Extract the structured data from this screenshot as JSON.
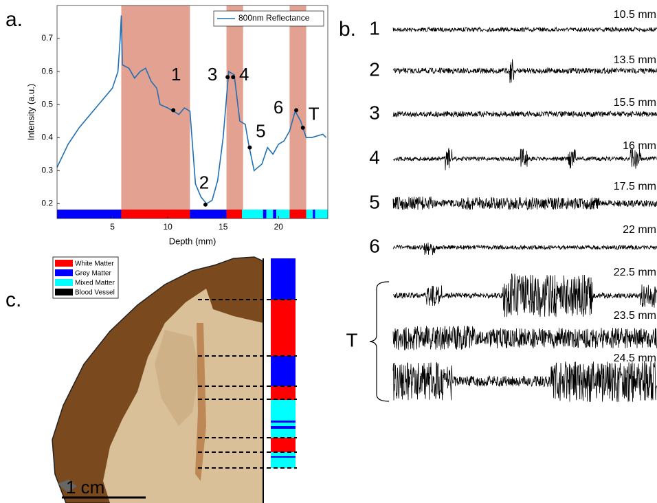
{
  "panel_labels": [
    "a.",
    "b.",
    "c."
  ],
  "chart_data": {
    "type": "line",
    "x_label": "Depth (mm)",
    "y_label": "Intensity (a.u.)",
    "x": [
      0,
      1,
      2,
      3,
      4,
      5,
      5.5,
      5.7,
      5.8,
      5.9,
      6.5,
      7,
      7.5,
      8,
      8.5,
      9,
      9.3,
      10,
      10.5,
      11,
      11.5,
      12,
      12.5,
      13,
      13.5,
      14,
      14.5,
      15,
      15.5,
      16,
      16.5,
      17,
      17.3,
      17.8,
      18.5,
      19,
      19.5,
      20,
      20.5,
      21,
      21.5,
      22,
      22.5,
      23,
      24,
      24.3
    ],
    "series": [
      {
        "name": "800nm Reflectance",
        "color": "#1f6fb4",
        "values": [
          0.31,
          0.38,
          0.43,
          0.47,
          0.51,
          0.55,
          0.6,
          0.7,
          0.77,
          0.62,
          0.61,
          0.58,
          0.6,
          0.61,
          0.57,
          0.55,
          0.5,
          0.49,
          0.48,
          0.47,
          0.49,
          0.48,
          0.26,
          0.22,
          0.2,
          0.21,
          0.27,
          0.4,
          0.6,
          0.59,
          0.45,
          0.44,
          0.38,
          0.3,
          0.32,
          0.37,
          0.35,
          0.38,
          0.39,
          0.42,
          0.48,
          0.45,
          0.4,
          0.4,
          0.41,
          0.4
        ]
      }
    ],
    "xlim": [
      0,
      24.45
    ],
    "ylim": [
      0.155,
      0.8
    ],
    "xticks": [
      5,
      10,
      15,
      20
    ],
    "yticks": [
      0.2,
      0.3,
      0.4,
      0.5,
      0.6,
      0.7
    ],
    "legend": "upper right",
    "shaded_regions": {
      "color": "#e3a192",
      "ranges": [
        [
          5.8,
          12.0
        ],
        [
          15.3,
          16.8
        ],
        [
          21.0,
          22.5
        ]
      ]
    },
    "depth_bar": [
      {
        "start": 0,
        "end": 5.8,
        "color": "#0000ff"
      },
      {
        "start": 5.8,
        "end": 12.0,
        "color": "#ff0000"
      },
      {
        "start": 12.0,
        "end": 15.3,
        "color": "#0000ff"
      },
      {
        "start": 15.3,
        "end": 16.7,
        "color": "#ff0000"
      },
      {
        "start": 16.7,
        "end": 18.6,
        "color": "#00ffff"
      },
      {
        "start": 18.6,
        "end": 18.9,
        "color": "#0000ff"
      },
      {
        "start": 18.9,
        "end": 19.5,
        "color": "#00ffff"
      },
      {
        "start": 19.5,
        "end": 19.8,
        "color": "#0000ff"
      },
      {
        "start": 19.8,
        "end": 21.0,
        "color": "#00ffff"
      },
      {
        "start": 21.0,
        "end": 22.5,
        "color": "#ff0000"
      },
      {
        "start": 22.5,
        "end": 23.1,
        "color": "#00ffff"
      },
      {
        "start": 23.1,
        "end": 23.3,
        "color": "#0000ff"
      },
      {
        "start": 23.3,
        "end": 24.45,
        "color": "#00ffff"
      }
    ],
    "point_labels": [
      {
        "label": "1",
        "x": 10.5,
        "y": 0.483
      },
      {
        "label": "2",
        "x": 13.4,
        "y": 0.197
      },
      {
        "label": "3",
        "x": 15.4,
        "y": 0.583
      },
      {
        "label": "4",
        "x": 15.9,
        "y": 0.583
      },
      {
        "label": "5",
        "x": 17.4,
        "y": 0.37
      },
      {
        "label": "6",
        "x": 21.6,
        "y": 0.483
      },
      {
        "label": "T",
        "x": 22.2,
        "y": 0.43
      }
    ]
  },
  "traces": {
    "rows": [
      {
        "label": "1",
        "depth": "10.5 mm"
      },
      {
        "label": "2",
        "depth": "13.5 mm"
      },
      {
        "label": "3",
        "depth": "15.5 mm"
      },
      {
        "label": "4",
        "depth": "16 mm"
      },
      {
        "label": "5",
        "depth": "17.5 mm"
      },
      {
        "label": "6",
        "depth": "22 mm"
      },
      {
        "depth": "22.5 mm"
      },
      {
        "depth": "23.5 mm"
      },
      {
        "depth": "24.5 mm"
      }
    ],
    "group_label": "T"
  },
  "tissue_legend": [
    {
      "name": "White Matter",
      "color": "#ff0000"
    },
    {
      "name": "Grey Matter",
      "color": "#0000ff"
    },
    {
      "name": "Mixed Matter",
      "color": "#00ffff"
    },
    {
      "name": "Blood Vessel",
      "color": "#000000"
    }
  ],
  "scale_bar": "1 cm"
}
